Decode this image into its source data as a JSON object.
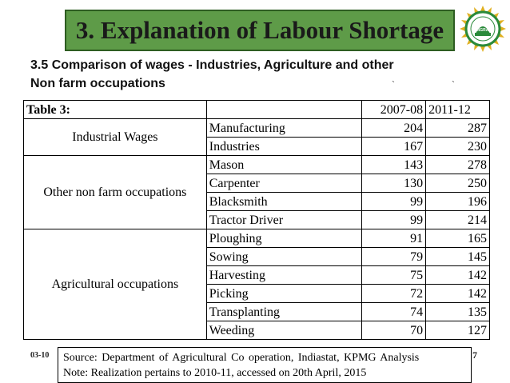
{
  "slide": {
    "title": "3. Explanation of Labour Shortage",
    "subtitle_line1": "3.5 Comparison of wages - Industries, Agriculture and other",
    "subtitle_line2": "Non farm occupations",
    "tick_mark": "`",
    "slide_number_fragment": "03-10",
    "page_number_fragment": "7"
  },
  "table": {
    "label": "Table 3:",
    "columns": [
      "2007-08",
      "2011-12"
    ],
    "groups": [
      {
        "name": "Industrial Wages",
        "rows": [
          {
            "item": "Manufacturing",
            "v2007": "204",
            "v2011": "287"
          },
          {
            "item": "Industries",
            "v2007": "167",
            "v2011": "230"
          }
        ]
      },
      {
        "name": "Other non farm occupations",
        "rows": [
          {
            "item": "Mason",
            "v2007": "143",
            "v2011": "278"
          },
          {
            "item": "Carpenter",
            "v2007": "130",
            "v2011": "250"
          },
          {
            "item": "Blacksmith",
            "v2007": "99",
            "v2011": "196"
          },
          {
            "item": "Tractor Driver",
            "v2007": "99",
            "v2011": "214"
          }
        ]
      },
      {
        "name": "Agricultural occupations",
        "rows": [
          {
            "item": "Ploughing",
            "v2007": "91",
            "v2011": "165"
          },
          {
            "item": "Sowing",
            "v2007": "79",
            "v2011": "145"
          },
          {
            "item": "Harvesting",
            "v2007": "75",
            "v2011": "142"
          },
          {
            "item": "Picking",
            "v2007": "72",
            "v2011": "142"
          },
          {
            "item": "Transplanting",
            "v2007": "74",
            "v2011": "135"
          },
          {
            "item": "Weeding",
            "v2007": "70",
            "v2011": "127"
          }
        ]
      }
    ]
  },
  "source": {
    "line1": "Source: Department of Agricultural Co operation, Indiastat, KPMG Analysis",
    "line2": "Note: Realization pertains to 2010-11, accessed on 20th April, 2015"
  },
  "colors": {
    "title_bg": "#5e9b48",
    "title_border": "#2e5d22"
  },
  "logo": {
    "icon": "university-seal-icon",
    "seal_text": "ANGRAU"
  }
}
